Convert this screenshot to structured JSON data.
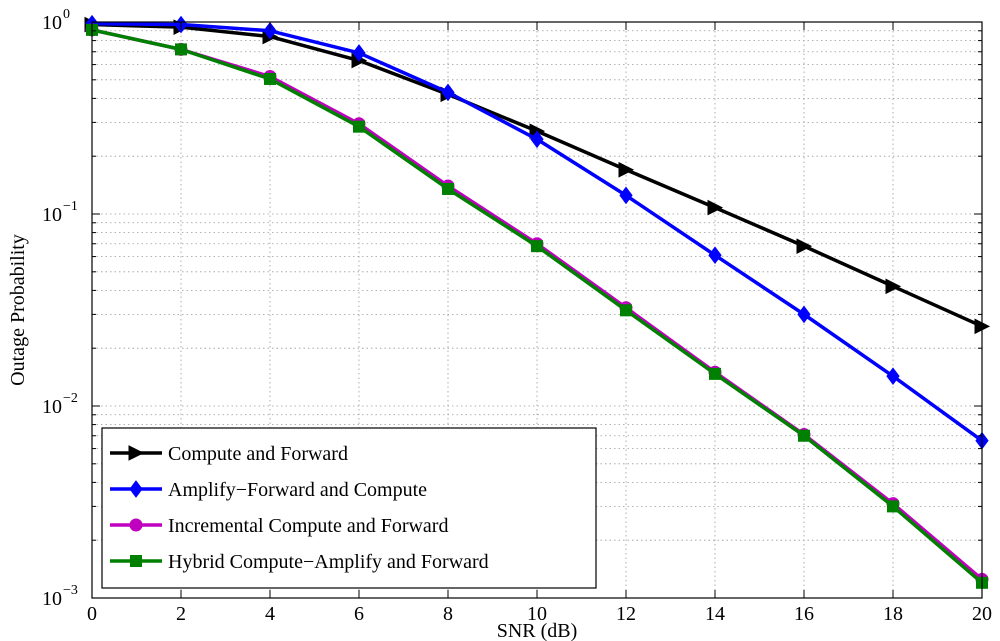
{
  "chart_data": {
    "type": "line",
    "title": "",
    "xlabel": "SNR (dB)",
    "ylabel": "Outage Probability",
    "xlim": [
      0,
      20
    ],
    "ylim": [
      0.001,
      1
    ],
    "yscale": "log",
    "grid": true,
    "legend_position": "bottom-left",
    "x": [
      0,
      2,
      4,
      6,
      8,
      10,
      12,
      14,
      16,
      18,
      20
    ],
    "x_ticks": [
      "0",
      "2",
      "4",
      "6",
      "8",
      "10",
      "12",
      "14",
      "16",
      "18",
      "20"
    ],
    "y_ticks": [
      {
        "value": 1,
        "base": "10",
        "exp": "0"
      },
      {
        "value": 0.1,
        "base": "10",
        "exp": "−1"
      },
      {
        "value": 0.01,
        "base": "10",
        "exp": "−2"
      },
      {
        "value": 0.001,
        "base": "10",
        "exp": "−3"
      }
    ],
    "series": [
      {
        "name": "Compute and Forward",
        "color": "#000000",
        "marker": "triangle-right",
        "values": [
          0.97,
          0.94,
          0.84,
          0.63,
          0.42,
          0.27,
          0.17,
          0.108,
          0.068,
          0.042,
          0.026
        ]
      },
      {
        "name": "Amplify−Forward and Compute",
        "color": "#0000ff",
        "marker": "diamond",
        "values": [
          0.98,
          0.97,
          0.9,
          0.69,
          0.43,
          0.245,
          0.125,
          0.061,
          0.03,
          0.0143,
          0.0066
        ]
      },
      {
        "name": "Incremental Compute and Forward",
        "color": "#bf00bf",
        "marker": "circle",
        "values": [
          0.91,
          0.72,
          0.52,
          0.295,
          0.14,
          0.07,
          0.0325,
          0.015,
          0.0071,
          0.0031,
          0.00125
        ]
      },
      {
        "name": "Hybrid Compute−Amplify and Forward",
        "color": "#008000",
        "marker": "square",
        "values": [
          0.91,
          0.72,
          0.505,
          0.285,
          0.135,
          0.068,
          0.0315,
          0.0147,
          0.007,
          0.003,
          0.0012
        ]
      }
    ]
  }
}
